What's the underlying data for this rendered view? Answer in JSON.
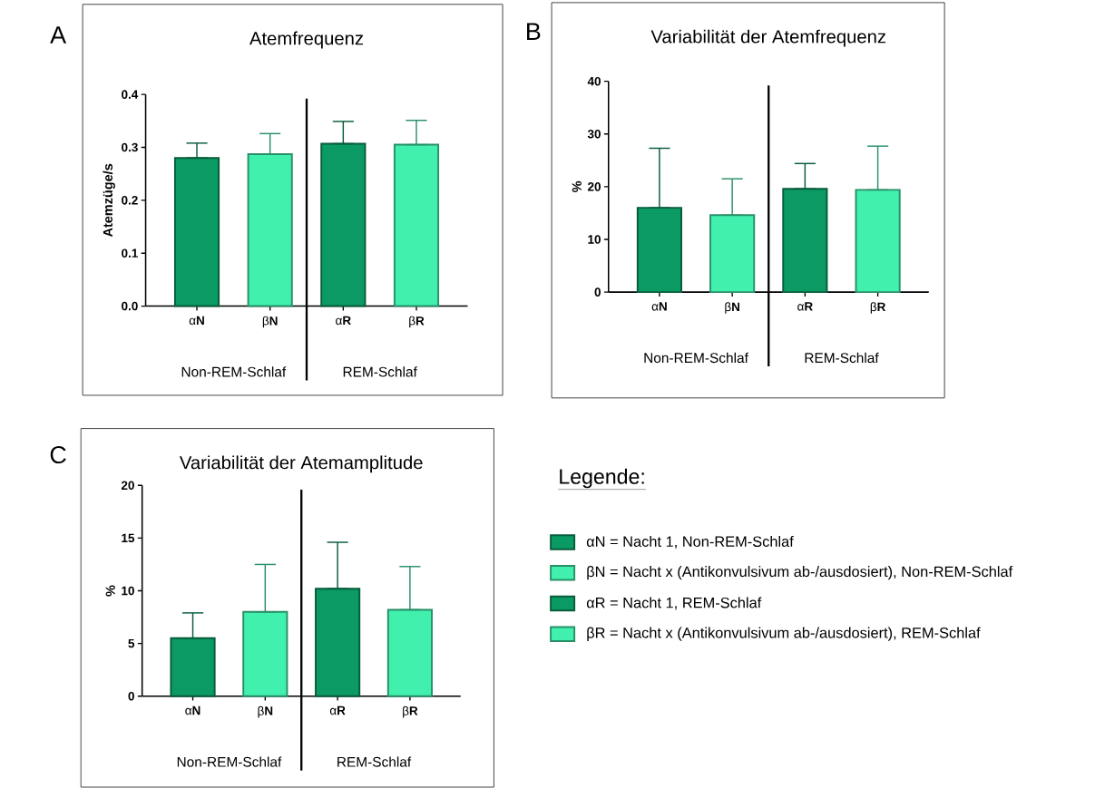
{
  "chart_data": [
    {
      "type": "bar",
      "title": "Atemfrequenz",
      "ylabel": "Atemzüge/s",
      "categories": [
        "α**N**",
        "β**N**",
        "α**R**",
        "β**R**"
      ],
      "values": [
        0.28,
        0.287,
        0.307,
        0.305
      ],
      "errors": [
        [
          0.28,
          0.308
        ],
        [
          0.287,
          0.326
        ],
        [
          0.307,
          0.349
        ],
        [
          0.305,
          0.351
        ]
      ],
      "colors": [
        "#0b9a63",
        "#42f0ae",
        "#0b9a63",
        "#42f0ae"
      ],
      "ylim": [
        0,
        0.4
      ],
      "yticks": [
        {
          "value": 0,
          "label": "0.0"
        },
        0.1,
        0.2,
        0.3,
        0.4
      ],
      "annotations": [
        "A",
        "Non-REM-Schlaf",
        "REM-Schlaf"
      ]
    },
    {
      "type": "bar",
      "title": "Variabilität der Atemfrequenz",
      "ylabel": "%",
      "categories": [
        "α**N**",
        "β**N**",
        "α**R**",
        "β**R**"
      ],
      "values": [
        16.0,
        14.6,
        19.6,
        19.4
      ],
      "errors": [
        [
          16.0,
          27.3
        ],
        [
          14.6,
          21.5
        ],
        [
          19.6,
          24.4
        ],
        [
          19.4,
          27.7
        ]
      ],
      "colors": [
        "#0b9a63",
        "#42f0ae",
        "#0b9a63",
        "#42f0ae"
      ],
      "ylim": [
        0,
        40
      ],
      "yticks": [
        0,
        10,
        20,
        30,
        40
      ],
      "annotations": [
        "B",
        "Non-REM-Schlaf",
        "REM-Schlaf"
      ]
    },
    {
      "type": "bar",
      "title": "Variabilität der Atemamplitude",
      "ylabel": "%",
      "categories": [
        "α**N**",
        "β**N**",
        "α**R**",
        "β**R**"
      ],
      "values": [
        5.5,
        8.0,
        10.2,
        8.2
      ],
      "errors": [
        [
          5.5,
          7.9
        ],
        [
          8.0,
          12.5
        ],
        [
          10.2,
          14.6
        ],
        [
          8.2,
          12.3
        ]
      ],
      "colors": [
        "#0b9a63",
        "#42f0ae",
        "#0b9a63",
        "#42f0ae"
      ],
      "ylim": [
        0,
        20
      ],
      "yticks": [
        0,
        5,
        10,
        15,
        20
      ],
      "annotations": [
        "C",
        "Non-REM-Schlaf",
        "REM-Schlaf"
      ]
    },
    {
      "type": "other",
      "title": "Legende:",
      "categories": [
        "αN = Nacht 1, Non-REM-Schlaf",
        "βN = Nacht x (Antikonvulsivum ab-/ausdosiert), Non-REM-Schlaf",
        "αR = Nacht 1, REM-Schlaf",
        "βR = Nacht x (Antikonvulsivum ab-/ausdosiert), REM-Schlaf"
      ],
      "colors": [
        "#0b9a63",
        "#42f0ae",
        "#0b9a63",
        "#42f0ae"
      ]
    }
  ]
}
